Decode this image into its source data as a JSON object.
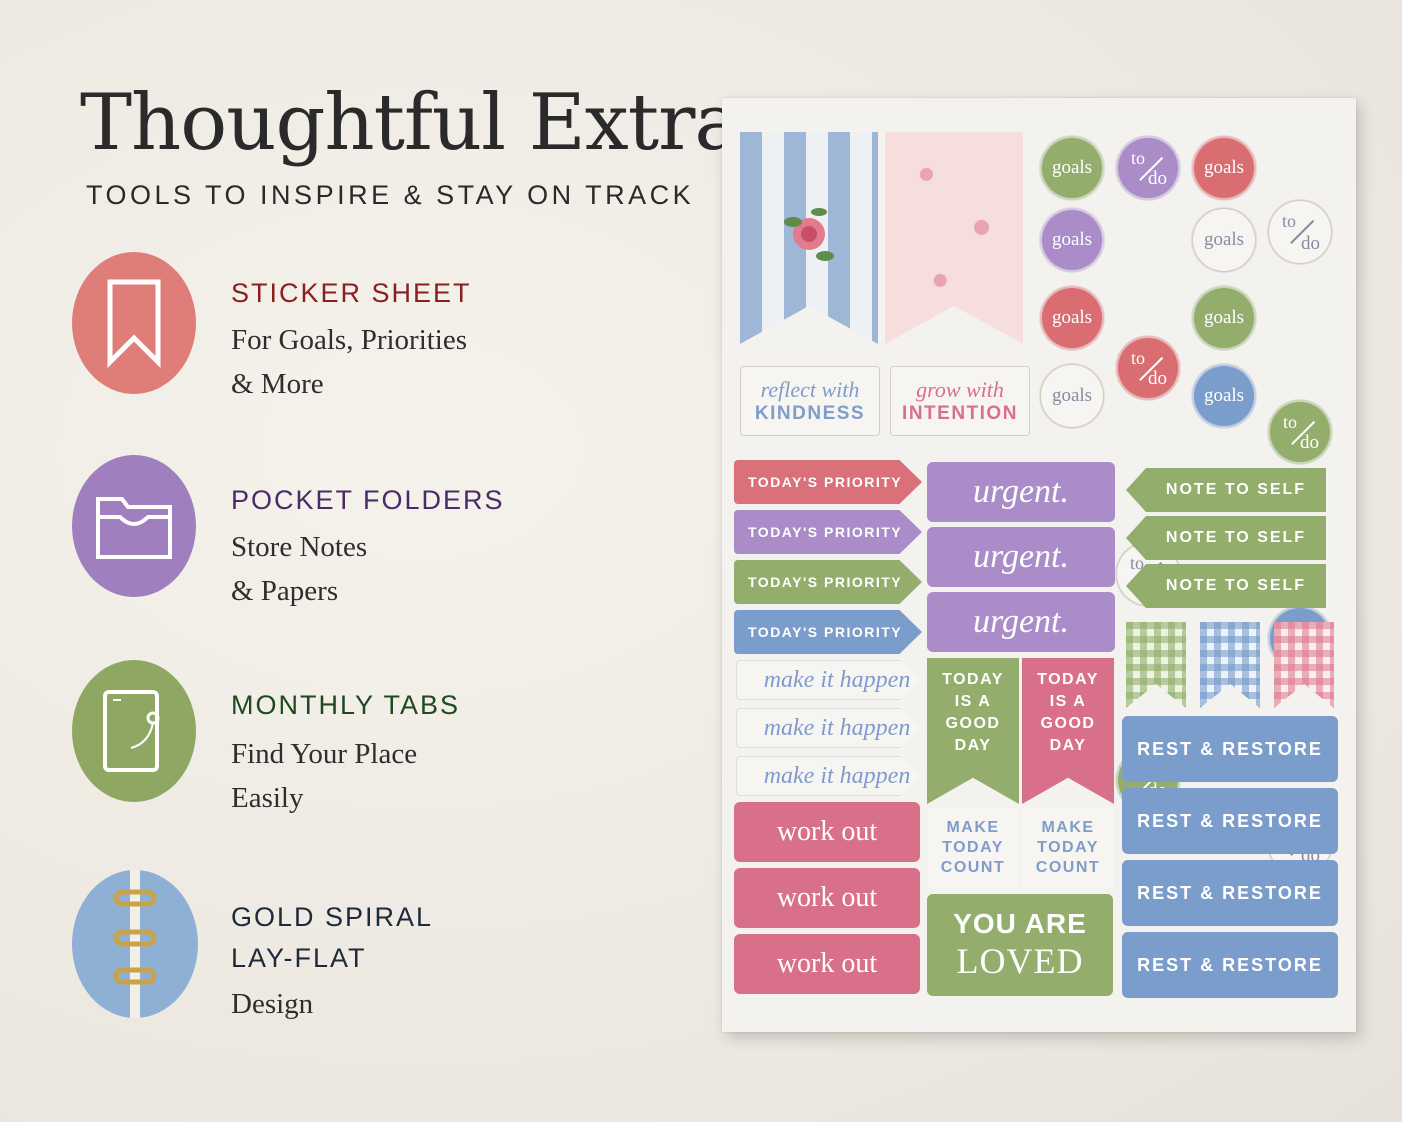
{
  "header": {
    "title": "Thoughtful Extras",
    "subtitle": "TOOLS TO INSPIRE & STAY ON TRACK"
  },
  "features": [
    {
      "title": "STICKER SHEET",
      "line1": "For Goals, Priorities",
      "line2": "& More",
      "icon": "bookmark-icon",
      "color": "#df7d78",
      "title_color": "#8b1f1f"
    },
    {
      "title": "POCKET FOLDERS",
      "line1": "Store Notes",
      "line2": "& Papers",
      "icon": "folder-icon",
      "color": "#a07fbe",
      "title_color": "#4a2a6a"
    },
    {
      "title": "MONTHLY TABS",
      "line1": "Find Your Place",
      "line2": "Easily",
      "icon": "tablet-icon",
      "color": "#8ea864",
      "title_color": "#1f4a1f"
    },
    {
      "title": "GOLD SPIRAL",
      "title2": "LAY-FLAT",
      "line1": "Design",
      "icon": "spiral-icon",
      "color": "#8db0d4",
      "title_color": "#1d2a3a"
    }
  ],
  "sheet": {
    "goals": "goals",
    "to": "to",
    "do": "do",
    "reflect_script": "reflect with",
    "reflect_caps": "KINDNESS",
    "grow_script": "grow with",
    "grow_caps": "INTENTION",
    "priority": "TODAY'S PRIORITY",
    "urgent": "urgent.",
    "note": "NOTE TO SELF",
    "make": "make it happen",
    "today_good": "TODAY IS A GOOD DAY",
    "make_count": "MAKE TODAY COUNT",
    "work": "work out",
    "loved1": "YOU ARE",
    "loved2": "LOVED",
    "rest": "REST & RESTORE"
  },
  "colors": {
    "green": "#93ad6c",
    "purple": "#a98cc8",
    "pink": "#d9708a",
    "blue": "#7a9dcb",
    "red": "#d96d72"
  }
}
